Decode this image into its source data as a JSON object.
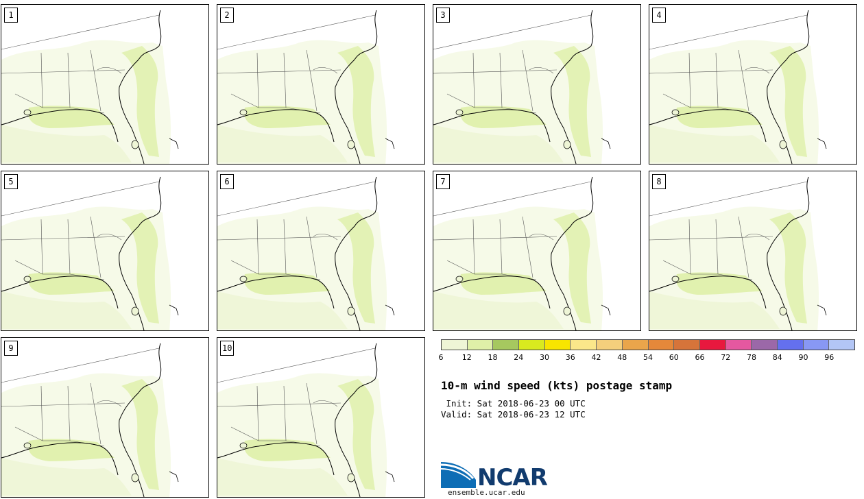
{
  "panels": [
    {
      "label": "1"
    },
    {
      "label": "2"
    },
    {
      "label": "3"
    },
    {
      "label": "4"
    },
    {
      "label": "5"
    },
    {
      "label": "6"
    },
    {
      "label": "7"
    },
    {
      "label": "8"
    },
    {
      "label": "9"
    },
    {
      "label": "10"
    }
  ],
  "colorbar": {
    "ticks": [
      "6",
      "12",
      "18",
      "24",
      "30",
      "36",
      "42",
      "48",
      "54",
      "60",
      "66",
      "72",
      "78",
      "84",
      "90",
      "96"
    ],
    "colors": [
      "#eef5d6",
      "#dff0a8",
      "#a6c85f",
      "#d9ea1f",
      "#f8e500",
      "#fbe78a",
      "#f4cf7c",
      "#eaa54b",
      "#e5883a",
      "#d6743a",
      "#e8183e",
      "#e558a0",
      "#9b68a8",
      "#6470ee",
      "#8898f4",
      "#b3c6f6"
    ]
  },
  "title": "10-m wind speed (kts) postage stamp",
  "init_line": " Init: Sat 2018-06-23 00 UTC",
  "valid_line": "Valid: Sat 2018-06-23 12 UTC",
  "logo": {
    "text": "NCAR",
    "url": "ensemble.ucar.edu"
  }
}
